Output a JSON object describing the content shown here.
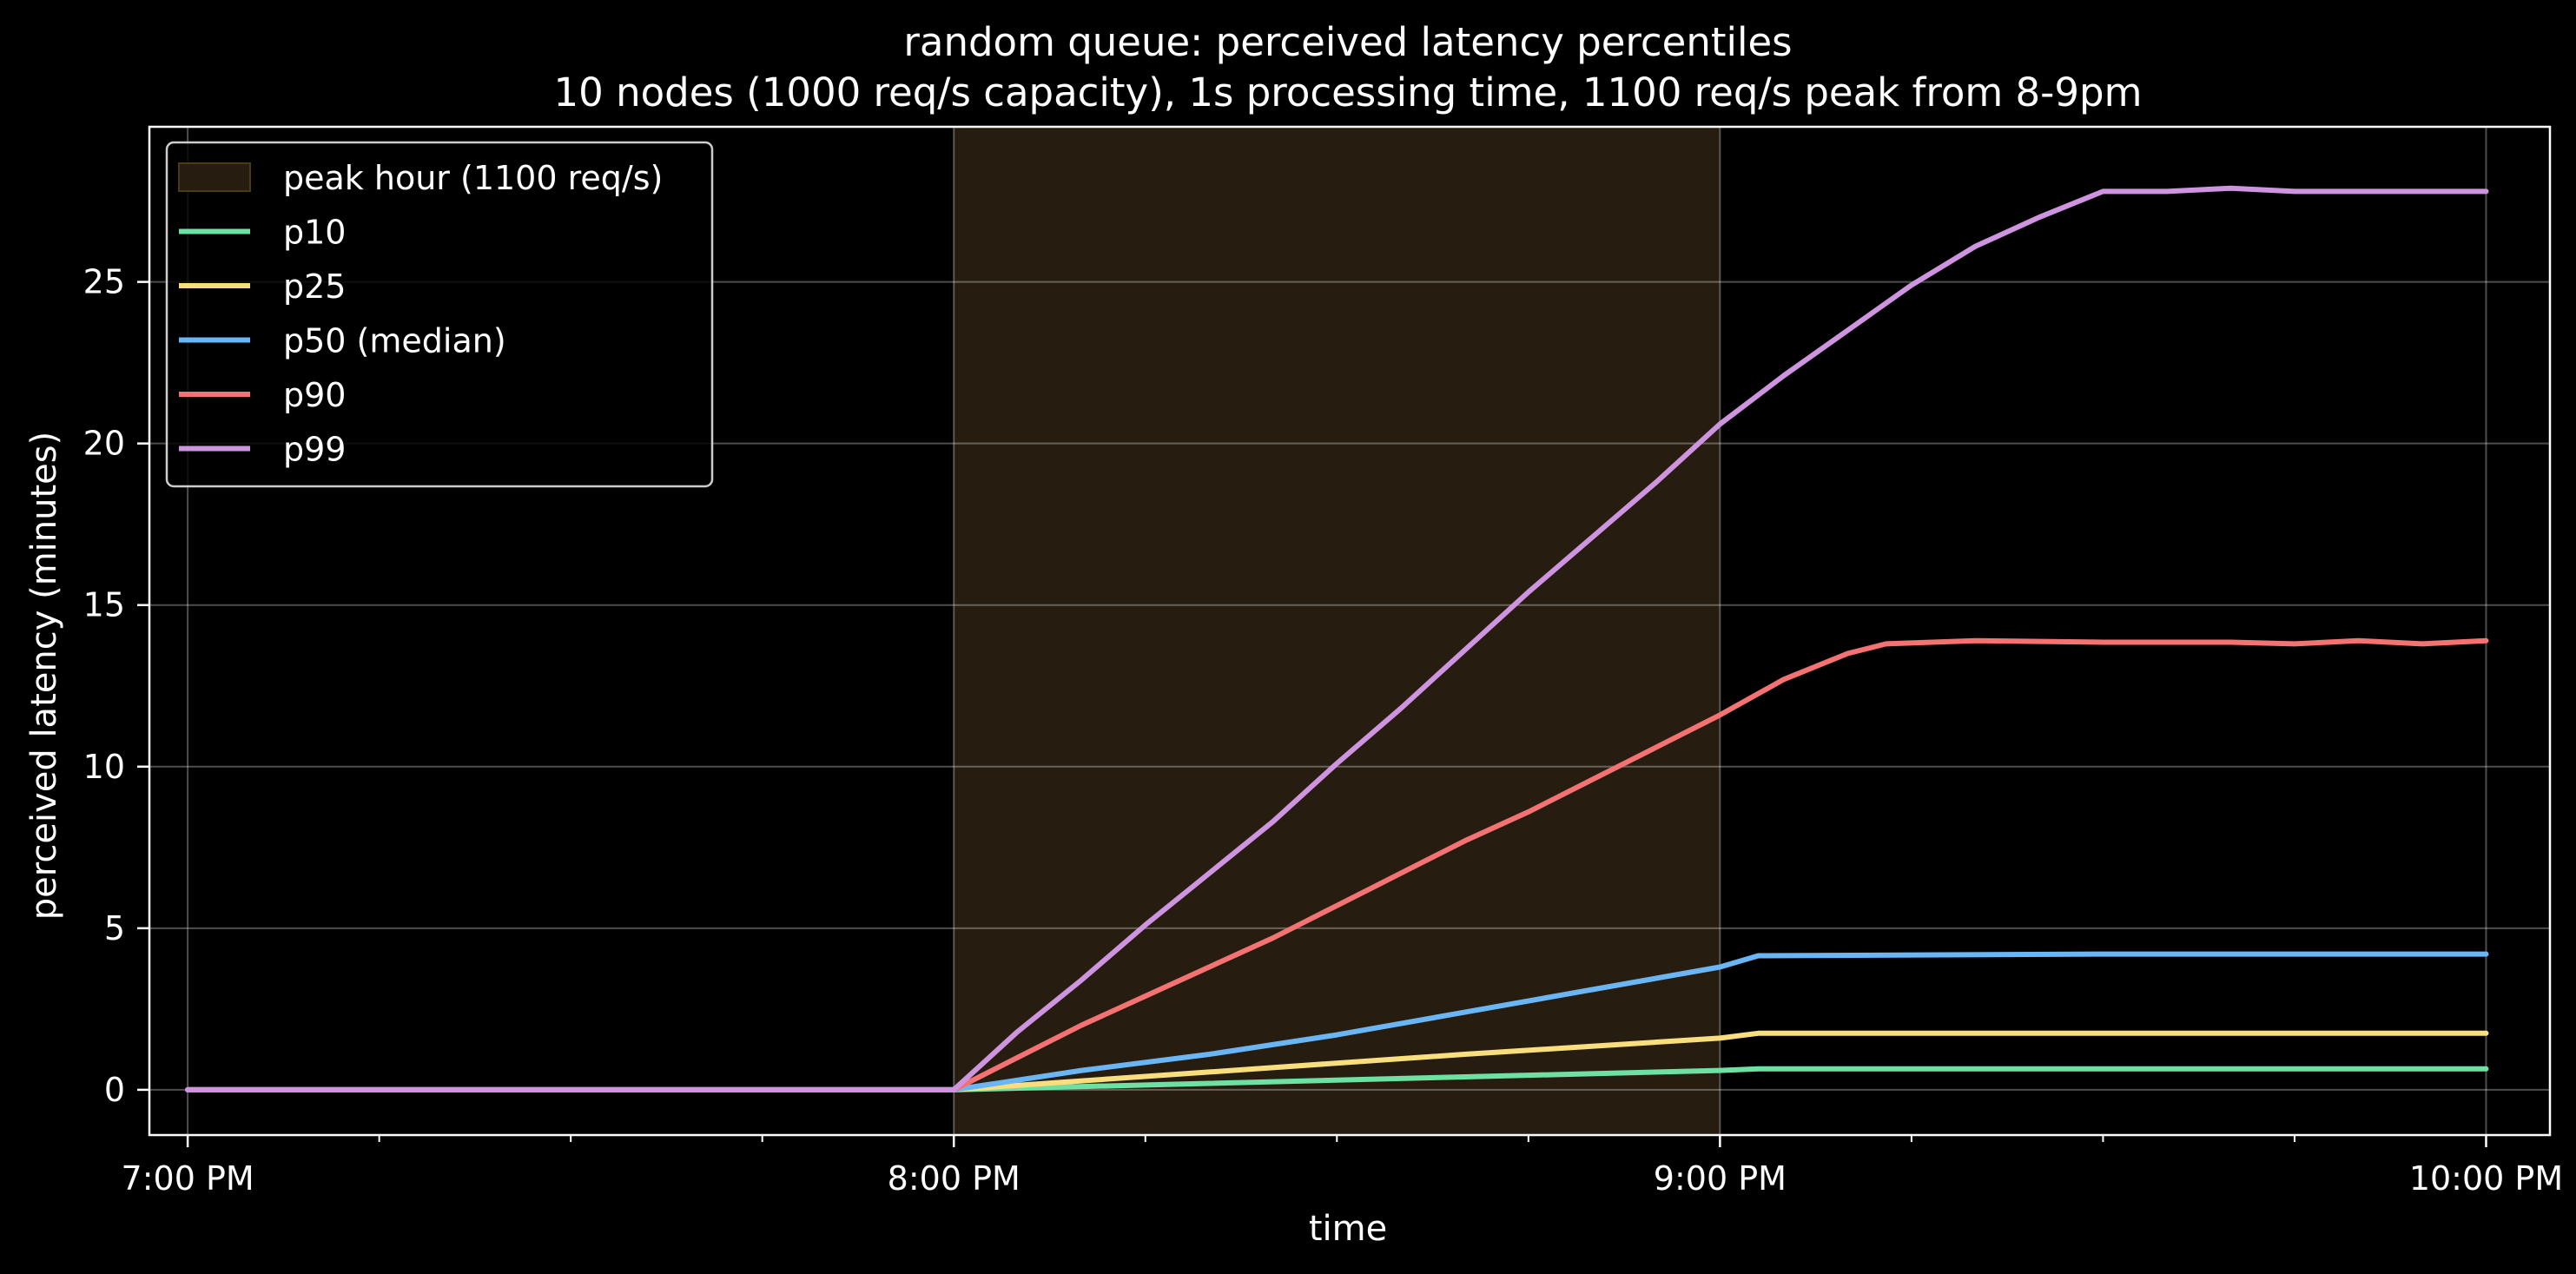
{
  "chart_data": {
    "type": "line",
    "title": "random queue: perceived latency percentiles",
    "subtitle": "10 nodes (1000 req/s capacity), 1s processing time, 1100 req/s peak from 8-9pm",
    "xlabel": "time",
    "ylabel": "perceived latency (minutes)",
    "x_unit": "minutes after 7:00 PM",
    "xlim": [
      -3,
      185
    ],
    "ylim": [
      -1.4,
      29.8
    ],
    "x_ticks": [
      {
        "value": 0,
        "label": "7:00 PM"
      },
      {
        "value": 60,
        "label": "8:00 PM"
      },
      {
        "value": 120,
        "label": "9:00 PM"
      },
      {
        "value": 180,
        "label": "10:00 PM"
      }
    ],
    "x_minor_ticks": [
      15,
      30,
      45,
      75,
      90,
      105,
      135,
      150,
      165
    ],
    "y_ticks": [
      {
        "value": 0,
        "label": "0"
      },
      {
        "value": 5,
        "label": "5"
      },
      {
        "value": 10,
        "label": "10"
      },
      {
        "value": 15,
        "label": "15"
      },
      {
        "value": 20,
        "label": "20"
      },
      {
        "value": 25,
        "label": "25"
      }
    ],
    "grid": true,
    "legend_position": "upper-left",
    "peak_band": {
      "label": "peak hour (1100 req/s)",
      "x_start": 60,
      "x_end": 120,
      "color": "#261d10",
      "edge_color": "#4a3a1c"
    },
    "series": [
      {
        "name": "p10",
        "color": "#6ee0a2",
        "points": [
          [
            0,
            0
          ],
          [
            60,
            0
          ],
          [
            80,
            0.2
          ],
          [
            100,
            0.4
          ],
          [
            120,
            0.6
          ],
          [
            123,
            0.65
          ],
          [
            150,
            0.65
          ],
          [
            180,
            0.65
          ]
        ]
      },
      {
        "name": "p25",
        "color": "#f9de7e",
        "points": [
          [
            0,
            0
          ],
          [
            60,
            0
          ],
          [
            80,
            0.55
          ],
          [
            100,
            1.1
          ],
          [
            120,
            1.6
          ],
          [
            123,
            1.75
          ],
          [
            150,
            1.75
          ],
          [
            180,
            1.75
          ]
        ]
      },
      {
        "name": "p50 (median)",
        "color": "#6ab6f5",
        "points": [
          [
            0,
            0
          ],
          [
            60,
            0
          ],
          [
            70,
            0.6
          ],
          [
            80,
            1.1
          ],
          [
            90,
            1.7
          ],
          [
            100,
            2.4
          ],
          [
            110,
            3.1
          ],
          [
            120,
            3.8
          ],
          [
            123,
            4.15
          ],
          [
            150,
            4.2
          ],
          [
            180,
            4.2
          ]
        ]
      },
      {
        "name": "p90",
        "color": "#f47272",
        "points": [
          [
            0,
            0
          ],
          [
            60,
            0
          ],
          [
            65,
            1.0
          ],
          [
            70,
            2.0
          ],
          [
            75,
            2.9
          ],
          [
            80,
            3.8
          ],
          [
            85,
            4.7
          ],
          [
            90,
            5.7
          ],
          [
            95,
            6.7
          ],
          [
            100,
            7.7
          ],
          [
            105,
            8.6
          ],
          [
            110,
            9.6
          ],
          [
            115,
            10.6
          ],
          [
            120,
            11.6
          ],
          [
            125,
            12.7
          ],
          [
            130,
            13.5
          ],
          [
            133,
            13.8
          ],
          [
            140,
            13.9
          ],
          [
            150,
            13.85
          ],
          [
            160,
            13.85
          ],
          [
            165,
            13.8
          ],
          [
            170,
            13.9
          ],
          [
            175,
            13.8
          ],
          [
            180,
            13.9
          ]
        ]
      },
      {
        "name": "p99",
        "color": "#cf94e0",
        "points": [
          [
            0,
            0
          ],
          [
            60,
            0
          ],
          [
            65,
            1.8
          ],
          [
            70,
            3.4
          ],
          [
            75,
            5.1
          ],
          [
            80,
            6.7
          ],
          [
            85,
            8.3
          ],
          [
            90,
            10.1
          ],
          [
            95,
            11.8
          ],
          [
            100,
            13.6
          ],
          [
            105,
            15.4
          ],
          [
            110,
            17.1
          ],
          [
            115,
            18.8
          ],
          [
            120,
            20.6
          ],
          [
            125,
            22.1
          ],
          [
            130,
            23.5
          ],
          [
            135,
            24.9
          ],
          [
            140,
            26.1
          ],
          [
            145,
            27.0
          ],
          [
            150,
            27.8
          ],
          [
            155,
            27.8
          ],
          [
            160,
            27.9
          ],
          [
            165,
            27.8
          ],
          [
            170,
            27.8
          ],
          [
            175,
            27.8
          ],
          [
            180,
            27.8
          ]
        ]
      }
    ]
  }
}
